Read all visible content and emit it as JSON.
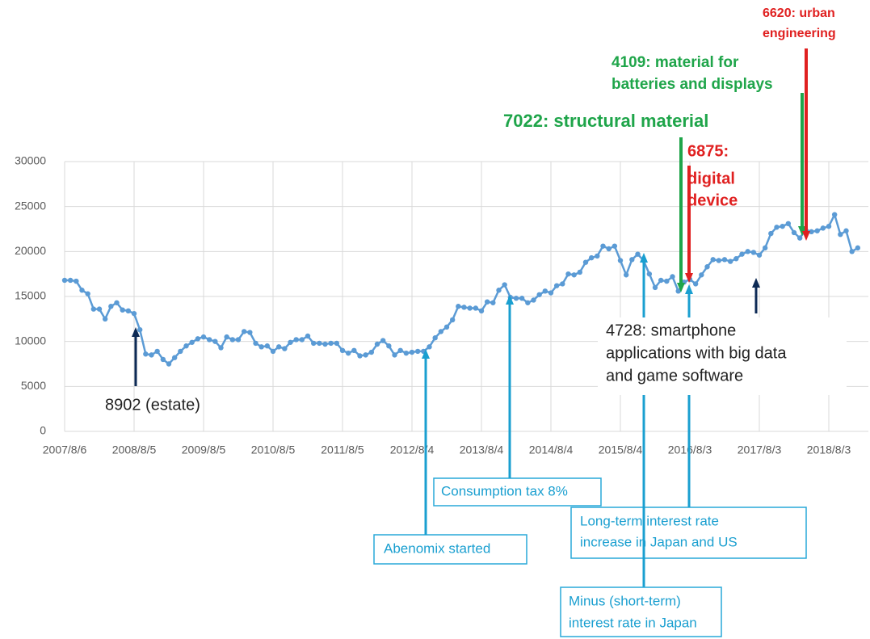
{
  "chart_data": {
    "type": "line",
    "categories": [
      "2007/8/6",
      null,
      null,
      null,
      null,
      null,
      null,
      null,
      null,
      null,
      null,
      null,
      "2008/8/5",
      null,
      null,
      null,
      null,
      null,
      null,
      null,
      null,
      null,
      null,
      null,
      "2009/8/5",
      null,
      null,
      null,
      null,
      null,
      null,
      null,
      null,
      null,
      null,
      null,
      "2010/8/5",
      null,
      null,
      null,
      null,
      null,
      null,
      null,
      null,
      null,
      null,
      null,
      "2011/8/5",
      null,
      null,
      null,
      null,
      null,
      null,
      null,
      null,
      null,
      null,
      null,
      "2012/8/4",
      null,
      null,
      null,
      null,
      null,
      null,
      null,
      null,
      null,
      null,
      null,
      "2013/8/4",
      null,
      null,
      null,
      null,
      null,
      null,
      null,
      null,
      null,
      null,
      null,
      "2014/8/4",
      null,
      null,
      null,
      null,
      null,
      null,
      null,
      null,
      null,
      null,
      null,
      "2015/8/4",
      null,
      null,
      null,
      null,
      null,
      null,
      null,
      null,
      null,
      null,
      null,
      "2016/8/3",
      null,
      null,
      null,
      null,
      null,
      null,
      null,
      null,
      null,
      null,
      null,
      "2017/8/3",
      null,
      null,
      null,
      null,
      null,
      null,
      null,
      null,
      null,
      null,
      null,
      "2018/8/3",
      null,
      null,
      null,
      null,
      null
    ],
    "values": [
      16800,
      16800,
      16700,
      15700,
      15300,
      13600,
      13600,
      12500,
      13900,
      14300,
      13500,
      13400,
      13100,
      11300,
      8600,
      8500,
      8900,
      8000,
      7500,
      8200,
      8900,
      9500,
      9900,
      10300,
      10500,
      10200,
      10000,
      9300,
      10500,
      10200,
      10200,
      11100,
      11000,
      9800,
      9400,
      9500,
      8900,
      9400,
      9200,
      9900,
      10200,
      10200,
      10600,
      9800,
      9800,
      9700,
      9800,
      9800,
      9000,
      8700,
      9000,
      8400,
      8500,
      8800,
      9700,
      10100,
      9500,
      8500,
      9000,
      8700,
      8800,
      8900,
      8900,
      9400,
      10400,
      11100,
      11600,
      12400,
      13900,
      13800,
      13700,
      13700,
      13400,
      14400,
      14300,
      15700,
      16300,
      14900,
      14800,
      14800,
      14300,
      14600,
      15200,
      15600,
      15400,
      16200,
      16400,
      17500,
      17400,
      17700,
      18800,
      19300,
      19500,
      20600,
      20300,
      20600,
      19000,
      17400,
      19100,
      19700,
      19000,
      17500,
      16000,
      16800,
      16700,
      17200,
      15600,
      16600,
      16900,
      16400,
      17400,
      18300,
      19100,
      19000,
      19100,
      18900,
      19200,
      19700,
      20000,
      19900,
      19600,
      20400,
      22000,
      22700,
      22800,
      23100,
      22100,
      21500,
      22400,
      22200,
      22300,
      22600,
      22800,
      24100,
      21900,
      22300,
      20000,
      20400
    ],
    "color": "#5b9bd5",
    "ylim": [
      0,
      30000
    ],
    "yticks": [
      0,
      5000,
      10000,
      15000,
      20000,
      25000,
      30000
    ],
    "grid": true,
    "annotations": [
      {
        "lines": [
          "8902 (estate)"
        ],
        "color": "#0d2a55"
      },
      {
        "lines": [
          "Abenomix started"
        ],
        "color": "#1a9fd0"
      },
      {
        "lines": [
          "Consumption tax 8%"
        ],
        "color": "#1a9fd0"
      },
      {
        "lines": [
          "Long-term interest rate",
          "increase in Japan and US"
        ],
        "color": "#1a9fd0"
      },
      {
        "lines": [
          "Minus (short-term)",
          "interest rate  in Japan"
        ],
        "color": "#1a9fd0"
      },
      {
        "lines": [
          "4728: smartphone",
          "applications with big data",
          "and game software"
        ],
        "color": "#0d2a55"
      },
      {
        "lines": [
          "7022: structural  material"
        ],
        "color": "#1fa54a"
      },
      {
        "lines": [
          "6875:",
          "digital",
          "device"
        ],
        "color": "#e02020"
      },
      {
        "lines": [
          "4109: material for",
          "batteries and displays"
        ],
        "color": "#1fa54a"
      },
      {
        "lines": [
          "6620: urban",
          "engineering"
        ],
        "color": "#e02020"
      }
    ]
  }
}
